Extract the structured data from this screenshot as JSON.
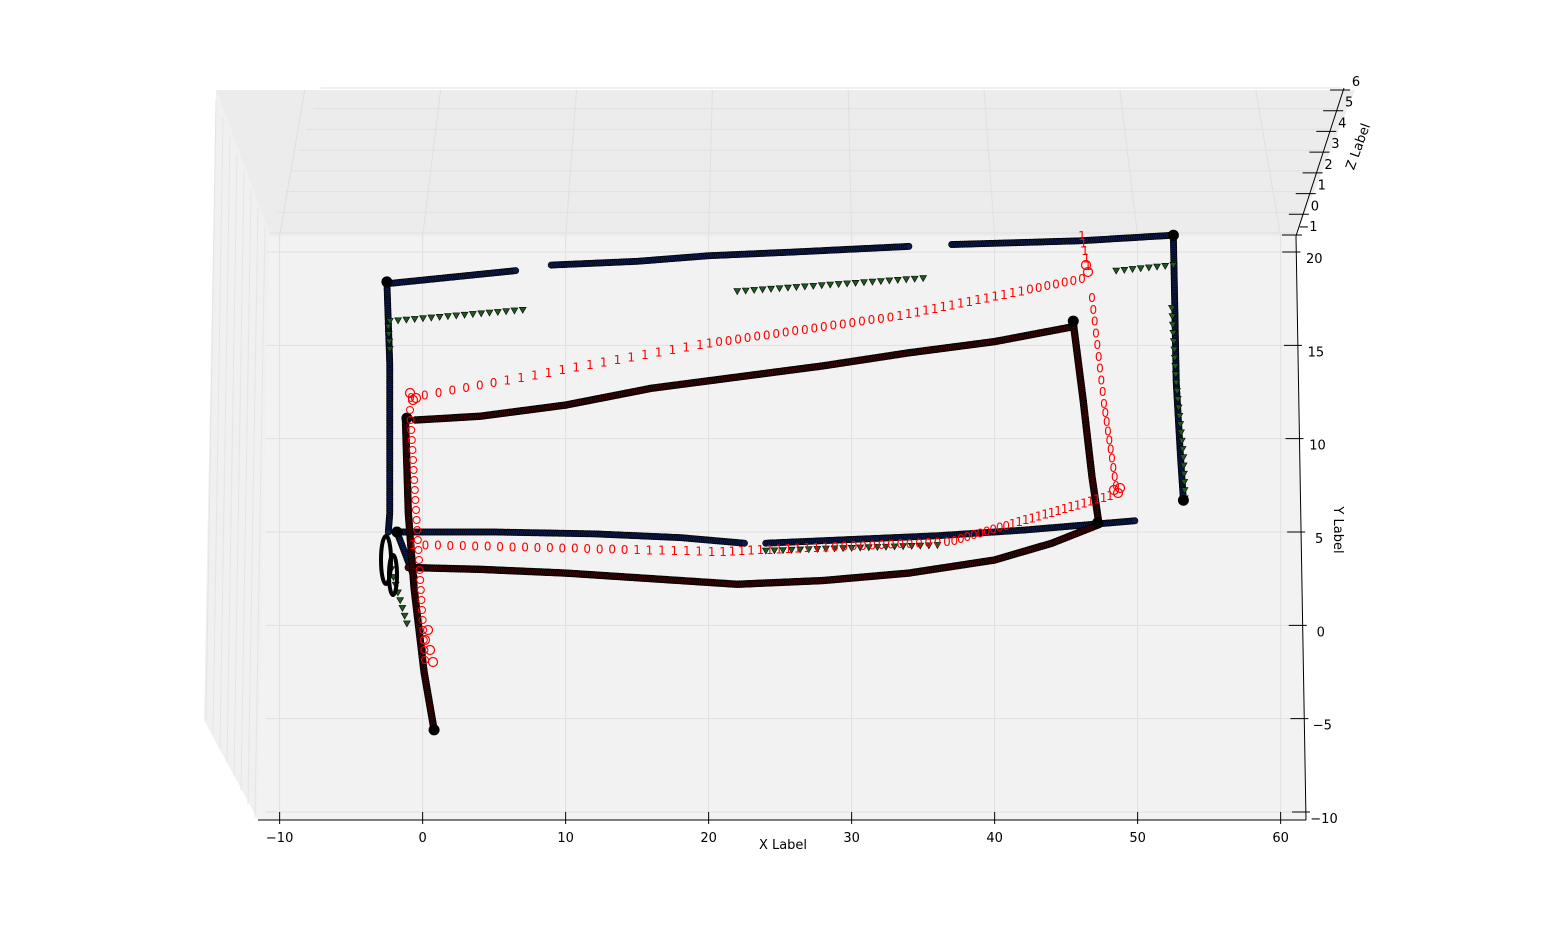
{
  "chart_data": {
    "type": "scatter",
    "projection": "3d",
    "view": "near top-down, slightly tilted",
    "title": "",
    "xlabel": "X Label",
    "ylabel": "Y Label",
    "zlabel": "Z Label",
    "xlim": [
      -11,
      61
    ],
    "ylim": [
      -10,
      20
    ],
    "zlim": [
      -1,
      6
    ],
    "xticks": [
      -10,
      0,
      10,
      20,
      30,
      40,
      50,
      60
    ],
    "yticks": [
      -10,
      -5,
      0,
      5,
      10,
      15,
      20
    ],
    "zticks": [
      -1,
      0,
      1,
      2,
      3,
      4,
      5,
      6
    ],
    "xtick_labels": [
      "−10",
      "0",
      "10",
      "20",
      "30",
      "40",
      "50",
      "60"
    ],
    "ytick_labels": [
      "−10",
      "−5",
      "0",
      "5",
      "10",
      "15",
      "20"
    ],
    "ztick_labels": [
      "−1",
      "0",
      "1",
      "2",
      "3",
      "4",
      "5",
      "6"
    ],
    "grid": true,
    "colors": {
      "pane": "#f2f2f2",
      "grid": "#e0e0e0",
      "navy_track": "#0d1a4a",
      "red_track": "#3a0606",
      "green_marker": "#1e5a20",
      "annotation": "#ff0000",
      "black_track": "#000000"
    },
    "series": [
      {
        "style": "navy-circles",
        "segments": [
          [
            [
              -2.5,
              18.3
            ],
            [
              6.5,
              19.0
            ]
          ],
          [
            [
              9,
              19.3
            ],
            [
              15,
              19.5
            ],
            [
              20,
              19.8
            ],
            [
              26,
              20.0
            ],
            [
              34,
              20.3
            ]
          ],
          [
            [
              37,
              20.4
            ],
            [
              46,
              20.6
            ],
            [
              52.5,
              20.9
            ]
          ],
          [
            [
              -2.5,
              18.4
            ],
            [
              -2.3,
              14
            ],
            [
              -2.3,
              10
            ],
            [
              -2.3,
              6
            ],
            [
              -2.4,
              5.0
            ]
          ],
          [
            [
              52.5,
              20.8
            ],
            [
              52.6,
              17
            ],
            [
              52.7,
              13
            ],
            [
              53.0,
              9
            ],
            [
              53.2,
              6.7
            ]
          ],
          [
            [
              -1.8,
              5.0
            ],
            [
              5,
              5.0
            ],
            [
              12,
              4.9
            ],
            [
              18,
              4.7
            ],
            [
              22.5,
              4.4
            ]
          ],
          [
            [
              24,
              4.4
            ],
            [
              30,
              4.6
            ],
            [
              36,
              4.8
            ],
            [
              42,
              5.1
            ],
            [
              49.8,
              5.6
            ]
          ],
          [
            [
              -1.8,
              5.0
            ],
            [
              -0.6,
              2.6
            ]
          ]
        ]
      },
      {
        "style": "darkred-circles",
        "segments": [
          [
            [
              -0.5,
              11.0
            ],
            [
              4,
              11.2
            ],
            [
              10,
              11.8
            ],
            [
              16,
              12.7
            ],
            [
              22,
              13.3
            ],
            [
              28,
              13.9
            ],
            [
              34,
              14.6
            ],
            [
              40,
              15.2
            ],
            [
              45.5,
              16.0
            ]
          ],
          [
            [
              45.5,
              16.2
            ],
            [
              46.2,
              12
            ],
            [
              46.8,
              8
            ],
            [
              47.3,
              5.4
            ]
          ],
          [
            [
              47.3,
              5.4
            ],
            [
              44,
              4.4
            ],
            [
              40,
              3.5
            ],
            [
              34,
              2.8
            ],
            [
              28,
              2.4
            ],
            [
              22,
              2.2
            ],
            [
              16,
              2.5
            ],
            [
              10,
              2.8
            ],
            [
              4,
              3.0
            ],
            [
              -1,
              3.1
            ]
          ],
          [
            [
              -1.2,
              11.0
            ],
            [
              -1,
              6
            ],
            [
              -0.6,
              2
            ],
            [
              0.1,
              -2.5
            ],
            [
              0.8,
              -5.6
            ]
          ]
        ]
      },
      {
        "style": "green-triangles",
        "segments": [
          [
            [
              -2.3,
              16.3
            ],
            [
              7,
              16.9
            ]
          ],
          [
            [
              22,
              17.9
            ],
            [
              35,
              18.6
            ]
          ],
          [
            [
              48.5,
              19.0
            ],
            [
              52.5,
              19.3
            ]
          ],
          [
            [
              52.4,
              17
            ],
            [
              52.7,
              13
            ],
            [
              53.2,
              9
            ],
            [
              53.3,
              6.8
            ]
          ],
          [
            [
              -2.4,
              16.0
            ],
            [
              -2.3,
              14.8
            ]
          ],
          [
            [
              24,
              4.0
            ],
            [
              36,
              4.3
            ]
          ],
          [
            [
              -2.2,
              3.0
            ],
            [
              -1.1,
              0.1
            ]
          ]
        ]
      }
    ],
    "annotations": {
      "top_sequence": "0 0 0 0 0 0 0 1 1 1 1 1 1 1 1 1 1 1 1 1 1 1 1 0 0 0 0 0 0 0 0 0 0 0 0 0 0 0 0 0 0 0 1 1 1 1 1 1 1 1 1 1 1 1 1 1 1 0 0 0 0 0 0 0",
      "bottom_sequence": "1 0 0 0 0 0 0 0 0 0 0 0 0 0 0 0 0 0 1 1 1 1 1 1 1 1 1 1 1 1 1 1 1 1 1 1 1 0 0 0 0 0 0 0 0 0 0 0 0 0 0 0 0 0 0 0 0 0 0 1 1 1 1 1 1 1 1 1 1 1 1 1 1 1 1",
      "right_sequence": "0 0 0 0 0 0 0 0 0 0 0 0 0 0 0 0 0 0 0",
      "corner_labels": "1 1 1 1 1"
    }
  }
}
